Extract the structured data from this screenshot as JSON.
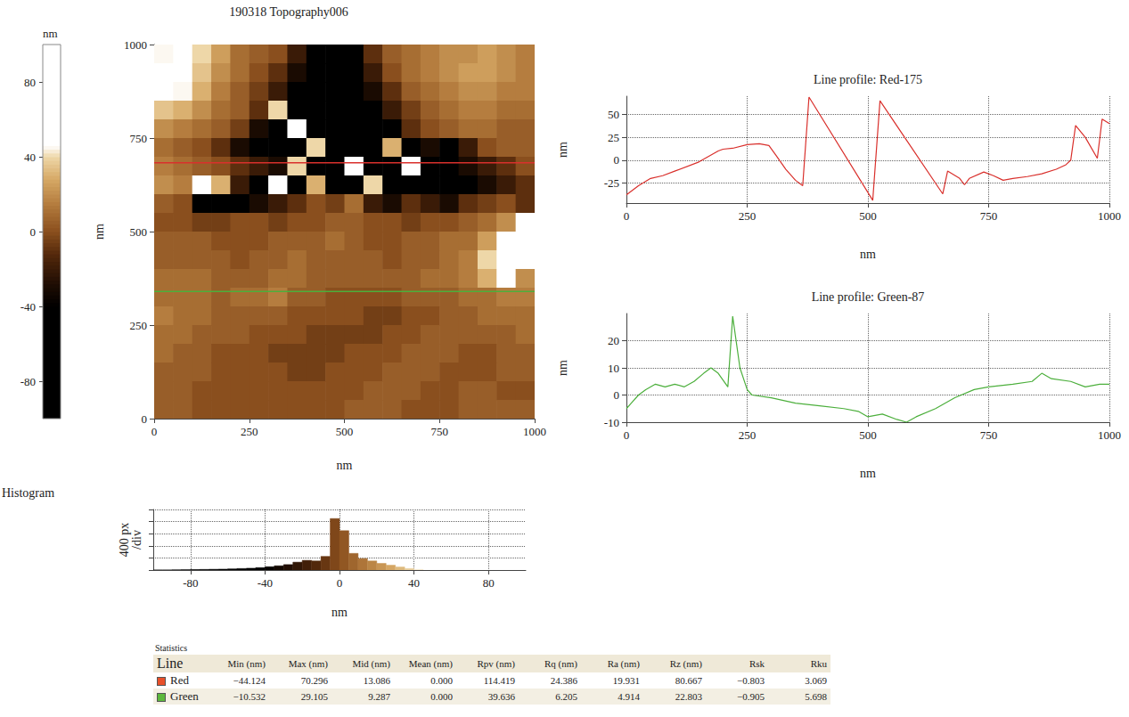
{
  "chart_data": [
    {
      "type": "heatmap",
      "title": "190318 Topography006",
      "x_label": "nm",
      "y_label": "nm",
      "xlim": [
        0,
        1000
      ],
      "ylim": [
        0,
        1000
      ],
      "xticks": [
        0,
        250,
        500,
        750,
        1000
      ],
      "yticks": [
        0,
        250,
        500,
        750,
        1000
      ],
      "cells": {
        "x": [
          25,
          75,
          125,
          175,
          225,
          275,
          325,
          375,
          425,
          475,
          525,
          575,
          625,
          675,
          725,
          775,
          825,
          875,
          925,
          975
        ],
        "y": [
          975,
          925,
          875,
          825,
          775,
          725,
          675,
          625,
          575,
          525,
          475,
          425,
          375,
          325,
          275,
          225,
          175,
          125,
          75,
          25
        ],
        "z": [
          [
            45,
            50,
            40,
            25,
            10,
            5,
            0,
            -20,
            -40,
            -50,
            -40,
            -10,
            5,
            10,
            15,
            20,
            20,
            25,
            20,
            15
          ],
          [
            55,
            50,
            35,
            20,
            10,
            0,
            -10,
            -30,
            -60,
            -70,
            -50,
            -20,
            0,
            10,
            15,
            20,
            25,
            25,
            20,
            15
          ],
          [
            50,
            45,
            30,
            15,
            5,
            -5,
            -20,
            -50,
            -80,
            -80,
            -60,
            -30,
            -10,
            5,
            10,
            15,
            20,
            20,
            15,
            15
          ],
          [
            35,
            30,
            20,
            10,
            5,
            -10,
            40,
            -40,
            -70,
            -90,
            -80,
            -50,
            -20,
            -5,
            5,
            10,
            15,
            15,
            10,
            10
          ],
          [
            20,
            15,
            10,
            5,
            -5,
            -30,
            -60,
            50,
            -50,
            -80,
            -90,
            -70,
            -40,
            -10,
            0,
            5,
            10,
            10,
            5,
            5
          ],
          [
            10,
            5,
            0,
            -10,
            -30,
            -60,
            -80,
            -70,
            40,
            -60,
            -90,
            -80,
            30,
            -50,
            -30,
            -60,
            -20,
            0,
            5,
            5
          ],
          [
            15,
            10,
            5,
            0,
            -10,
            -20,
            -30,
            40,
            -40,
            -70,
            50,
            -60,
            -80,
            60,
            -70,
            -40,
            -30,
            -20,
            -10,
            0
          ],
          [
            20,
            15,
            60,
            30,
            -20,
            -40,
            50,
            -50,
            30,
            -40,
            -60,
            40,
            -50,
            -70,
            -60,
            -50,
            -40,
            -30,
            -20,
            -10
          ],
          [
            5,
            0,
            -40,
            -60,
            -50,
            -30,
            -20,
            -10,
            0,
            -5,
            10,
            -20,
            -30,
            -10,
            -20,
            -30,
            -10,
            -5,
            0,
            -10
          ],
          [
            0,
            0,
            -5,
            -5,
            0,
            0,
            -5,
            0,
            0,
            5,
            5,
            0,
            0,
            -5,
            0,
            0,
            5,
            10,
            20,
            55
          ],
          [
            5,
            5,
            5,
            0,
            0,
            0,
            5,
            5,
            5,
            10,
            5,
            0,
            0,
            5,
            5,
            10,
            10,
            25,
            60,
            65
          ],
          [
            5,
            5,
            5,
            5,
            0,
            5,
            5,
            10,
            5,
            5,
            5,
            5,
            0,
            5,
            5,
            10,
            15,
            40,
            65,
            60
          ],
          [
            10,
            10,
            10,
            5,
            5,
            5,
            10,
            10,
            5,
            5,
            5,
            5,
            5,
            5,
            10,
            10,
            15,
            30,
            60,
            20
          ],
          [
            10,
            10,
            10,
            5,
            10,
            10,
            15,
            5,
            5,
            0,
            0,
            0,
            0,
            5,
            5,
            5,
            10,
            10,
            15,
            15
          ],
          [
            15,
            10,
            10,
            5,
            5,
            5,
            5,
            0,
            0,
            0,
            0,
            -5,
            -5,
            0,
            0,
            5,
            5,
            10,
            10,
            10
          ],
          [
            10,
            10,
            5,
            5,
            5,
            0,
            0,
            0,
            -5,
            -5,
            -5,
            -5,
            0,
            0,
            5,
            5,
            5,
            5,
            5,
            10
          ],
          [
            10,
            5,
            5,
            0,
            0,
            0,
            -5,
            -5,
            -5,
            -5,
            0,
            0,
            0,
            5,
            5,
            5,
            0,
            0,
            5,
            5
          ],
          [
            5,
            5,
            5,
            0,
            0,
            0,
            0,
            -5,
            -5,
            0,
            0,
            0,
            5,
            5,
            5,
            0,
            0,
            0,
            5,
            5
          ],
          [
            5,
            5,
            0,
            0,
            0,
            0,
            0,
            0,
            0,
            0,
            0,
            5,
            5,
            5,
            0,
            0,
            5,
            5,
            0,
            0
          ],
          [
            5,
            5,
            0,
            0,
            0,
            0,
            0,
            0,
            0,
            0,
            5,
            5,
            5,
            0,
            0,
            0,
            5,
            5,
            5,
            5
          ]
        ]
      },
      "colorbar": {
        "label": "nm",
        "range": [
          -100,
          100
        ],
        "ticks": [
          -80,
          -40,
          0,
          40,
          80
        ]
      },
      "profile_lines": [
        {
          "color": "#d9302c",
          "y": 684
        },
        {
          "color": "#4caf3c",
          "y": 340
        }
      ]
    },
    {
      "type": "line",
      "title": "Line profile: Red-175",
      "x_label": "nm",
      "y_label": "nm",
      "color": "#d9302c",
      "xlim": [
        0,
        1000
      ],
      "ylim": [
        -47,
        70
      ],
      "xticks": [
        0,
        250,
        500,
        750,
        1000
      ],
      "yticks": [
        -25,
        0,
        25,
        50
      ],
      "grid": true,
      "x": [
        0,
        25,
        50,
        75,
        100,
        150,
        190,
        200,
        220,
        250,
        275,
        295,
        310,
        330,
        350,
        365,
        378,
        510,
        525,
        655,
        665,
        690,
        700,
        710,
        740,
        760,
        780,
        800,
        830,
        860,
        890,
        910,
        920,
        930,
        950,
        975,
        985,
        1000
      ],
      "values": [
        -38,
        -28,
        -20,
        -17,
        -12,
        -2,
        10,
        12,
        13,
        17,
        18,
        16,
        5,
        -10,
        -22,
        -28,
        69,
        -44,
        65,
        -37,
        -12,
        -20,
        -27,
        -20,
        -13,
        -17,
        -22,
        -20,
        -18,
        -15,
        -10,
        -5,
        0,
        38,
        25,
        2,
        45,
        40
      ]
    },
    {
      "type": "line",
      "title": "Line profile: Green-87",
      "x_label": "nm",
      "y_label": "nm",
      "color": "#4caf3c",
      "xlim": [
        0,
        1000
      ],
      "ylim": [
        -10,
        30
      ],
      "xticks": [
        0,
        250,
        500,
        750,
        1000
      ],
      "yticks": [
        -10,
        0,
        10,
        20
      ],
      "grid": true,
      "x": [
        0,
        10,
        25,
        40,
        60,
        80,
        100,
        120,
        140,
        160,
        175,
        190,
        210,
        220,
        235,
        250,
        260,
        300,
        350,
        400,
        450,
        480,
        500,
        530,
        560,
        580,
        600,
        640,
        680,
        720,
        750,
        800,
        840,
        860,
        880,
        920,
        950,
        980,
        1000
      ],
      "values": [
        -5,
        -3,
        0,
        2,
        4,
        3,
        4,
        3,
        5,
        8,
        10,
        8,
        3,
        29,
        10,
        2,
        0,
        -1,
        -3,
        -4,
        -5,
        -6,
        -8,
        -7,
        -9,
        -10,
        -8,
        -5,
        -1,
        2,
        3,
        4,
        5,
        8,
        6,
        5,
        3,
        4,
        4
      ]
    },
    {
      "type": "histogram",
      "title": "Histogram",
      "x_label": "nm",
      "y_label": "400 px\n/div",
      "bins": [
        -100,
        -95,
        -90,
        -85,
        -80,
        -75,
        -70,
        -65,
        -60,
        -55,
        -50,
        -45,
        -40,
        -35,
        -30,
        -25,
        -20,
        -15,
        -10,
        -5,
        0,
        5,
        10,
        15,
        20,
        25,
        30,
        35,
        40,
        45,
        50,
        55,
        60,
        65,
        70,
        75,
        80,
        85,
        90,
        95,
        100
      ],
      "counts": [
        0,
        0,
        5,
        10,
        15,
        20,
        25,
        30,
        40,
        50,
        60,
        80,
        110,
        140,
        180,
        260,
        320,
        300,
        450,
        1700,
        1300,
        550,
        380,
        300,
        220,
        160,
        100,
        50,
        20,
        5,
        0,
        0,
        0,
        0,
        0,
        0,
        0,
        0,
        0,
        0
      ],
      "xlim": [
        -100,
        100
      ],
      "xticks": [
        -80,
        -40,
        0,
        40,
        80
      ],
      "ylim": [
        0,
        2000
      ],
      "yticks": [
        0,
        400,
        800,
        1200,
        1600,
        2000
      ],
      "tick_labels": "x",
      "grid": true
    }
  ],
  "table": {
    "title": "Statistics",
    "columns": [
      "Line",
      "Min (nm)",
      "Max (nm)",
      "Mid (nm)",
      "Mean (nm)",
      "Rpv (nm)",
      "Rq (nm)",
      "Ra (nm)",
      "Rz (nm)",
      "Rsk",
      "Rku"
    ],
    "rows": [
      {
        "color": "#e8502a",
        "cells": [
          "Red",
          "−44.124",
          "70.296",
          "13.086",
          "0.000",
          "114.419",
          "24.386",
          "19.931",
          "80.667",
          "−0.803",
          "3.069"
        ]
      },
      {
        "color": "#5cb83c",
        "cells": [
          "Green",
          "−10.532",
          "29.105",
          "9.287",
          "0.000",
          "39.636",
          "6.205",
          "4.914",
          "22.803",
          "−0.905",
          "5.698"
        ]
      }
    ]
  }
}
